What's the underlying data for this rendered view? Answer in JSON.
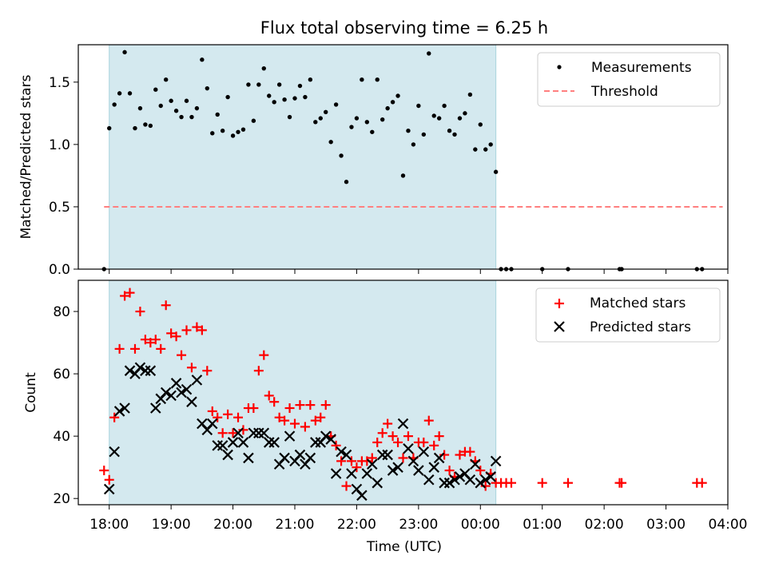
{
  "chart_data": [
    {
      "type": "scatter",
      "title": "Flux total observing time = 6.25 h",
      "xlabel": "",
      "ylabel": "Matched/Predicted stars",
      "xlim": [
        "17:30",
        "04:00"
      ],
      "ylim": [
        0,
        1.8
      ],
      "yticks": [
        "0.0",
        "0.5",
        "1.0",
        "1.5"
      ],
      "observing_window": [
        "18:00",
        "00:15"
      ],
      "observing_window_color": "#d4e9ef",
      "legend_position": "top-right",
      "legend": [
        "Measurements",
        "Threshold"
      ],
      "threshold": {
        "name": "Threshold",
        "value": 0.5,
        "x_range": [
          "17:55",
          "03:55"
        ],
        "color": "#ff7f7f"
      },
      "series": [
        {
          "name": "Measurements",
          "color": "#000000",
          "points": [
            [
              "17:55",
              0.0
            ],
            [
              "18:00",
              1.13
            ],
            [
              "18:05",
              1.32
            ],
            [
              "18:10",
              1.41
            ],
            [
              "18:15",
              1.74
            ],
            [
              "18:20",
              1.41
            ],
            [
              "18:25",
              1.13
            ],
            [
              "18:30",
              1.29
            ],
            [
              "18:35",
              1.16
            ],
            [
              "18:40",
              1.15
            ],
            [
              "18:45",
              1.44
            ],
            [
              "18:50",
              1.31
            ],
            [
              "18:55",
              1.52
            ],
            [
              "19:00",
              1.35
            ],
            [
              "19:05",
              1.27
            ],
            [
              "19:10",
              1.22
            ],
            [
              "19:15",
              1.35
            ],
            [
              "19:20",
              1.22
            ],
            [
              "19:25",
              1.29
            ],
            [
              "19:30",
              1.68
            ],
            [
              "19:35",
              1.45
            ],
            [
              "19:40",
              1.09
            ],
            [
              "19:45",
              1.24
            ],
            [
              "19:50",
              1.11
            ],
            [
              "19:55",
              1.38
            ],
            [
              "20:00",
              1.07
            ],
            [
              "20:05",
              1.1
            ],
            [
              "20:10",
              1.12
            ],
            [
              "20:15",
              1.48
            ],
            [
              "20:20",
              1.19
            ],
            [
              "20:25",
              1.48
            ],
            [
              "20:30",
              1.61
            ],
            [
              "20:35",
              1.39
            ],
            [
              "20:40",
              1.34
            ],
            [
              "20:45",
              1.48
            ],
            [
              "20:50",
              1.36
            ],
            [
              "20:55",
              1.22
            ],
            [
              "21:00",
              1.37
            ],
            [
              "21:05",
              1.47
            ],
            [
              "21:10",
              1.38
            ],
            [
              "21:15",
              1.52
            ],
            [
              "21:20",
              1.18
            ],
            [
              "21:25",
              1.21
            ],
            [
              "21:30",
              1.26
            ],
            [
              "21:35",
              1.02
            ],
            [
              "21:40",
              1.32
            ],
            [
              "21:45",
              0.91
            ],
            [
              "21:50",
              0.7
            ],
            [
              "21:55",
              1.14
            ],
            [
              "22:00",
              1.21
            ],
            [
              "22:05",
              1.52
            ],
            [
              "22:10",
              1.18
            ],
            [
              "22:15",
              1.1
            ],
            [
              "22:20",
              1.52
            ],
            [
              "22:25",
              1.2
            ],
            [
              "22:30",
              1.29
            ],
            [
              "22:35",
              1.34
            ],
            [
              "22:40",
              1.39
            ],
            [
              "22:45",
              0.75
            ],
            [
              "22:50",
              1.11
            ],
            [
              "22:55",
              1.0
            ],
            [
              "23:00",
              1.31
            ],
            [
              "23:05",
              1.08
            ],
            [
              "23:10",
              1.73
            ],
            [
              "23:15",
              1.23
            ],
            [
              "23:20",
              1.21
            ],
            [
              "23:25",
              1.31
            ],
            [
              "23:30",
              1.11
            ],
            [
              "23:35",
              1.08
            ],
            [
              "23:40",
              1.21
            ],
            [
              "23:45",
              1.25
            ],
            [
              "23:50",
              1.4
            ],
            [
              "23:55",
              0.96
            ],
            [
              "00:00",
              1.16
            ],
            [
              "00:05",
              0.96
            ],
            [
              "00:10",
              1.0
            ],
            [
              "00:15",
              0.78
            ],
            [
              "00:20",
              0.0
            ],
            [
              "00:25",
              0.0
            ],
            [
              "00:30",
              0.0
            ],
            [
              "01:00",
              0.0
            ],
            [
              "01:25",
              0.0
            ],
            [
              "02:15",
              0.0
            ],
            [
              "02:17",
              0.0
            ],
            [
              "03:30",
              0.0
            ],
            [
              "03:35",
              0.0
            ]
          ]
        }
      ]
    },
    {
      "type": "scatter",
      "title": "",
      "xlabel": "Time (UTC)",
      "ylabel": "Count",
      "xlim": [
        "17:30",
        "04:00"
      ],
      "ylim": [
        18,
        90
      ],
      "xticks": [
        "18:00",
        "19:00",
        "20:00",
        "21:00",
        "22:00",
        "23:00",
        "00:00",
        "01:00",
        "02:00",
        "03:00",
        "04:00"
      ],
      "yticks": [
        "20",
        "40",
        "60",
        "80"
      ],
      "observing_window": [
        "18:00",
        "00:15"
      ],
      "observing_window_color": "#d4e9ef",
      "legend_position": "top-right",
      "legend": [
        "Matched stars",
        "Predicted stars"
      ],
      "series": [
        {
          "name": "Matched stars",
          "color": "#ff0000",
          "marker": "plus",
          "points": [
            [
              "17:55",
              29
            ],
            [
              "18:00",
              26
            ],
            [
              "18:05",
              46
            ],
            [
              "18:10",
              68
            ],
            [
              "18:15",
              85
            ],
            [
              "18:20",
              86
            ],
            [
              "18:25",
              68
            ],
            [
              "18:30",
              80
            ],
            [
              "18:35",
              71
            ],
            [
              "18:40",
              70
            ],
            [
              "18:45",
              71
            ],
            [
              "18:50",
              68
            ],
            [
              "18:55",
              82
            ],
            [
              "19:00",
              73
            ],
            [
              "19:05",
              72
            ],
            [
              "19:10",
              66
            ],
            [
              "19:15",
              74
            ],
            [
              "19:20",
              62
            ],
            [
              "19:25",
              75
            ],
            [
              "19:30",
              74
            ],
            [
              "19:35",
              61
            ],
            [
              "19:40",
              48
            ],
            [
              "19:45",
              46
            ],
            [
              "19:50",
              41
            ],
            [
              "19:55",
              47
            ],
            [
              "20:00",
              41
            ],
            [
              "20:05",
              46
            ],
            [
              "20:10",
              42
            ],
            [
              "20:15",
              49
            ],
            [
              "20:20",
              49
            ],
            [
              "20:25",
              61
            ],
            [
              "20:30",
              66
            ],
            [
              "20:35",
              53
            ],
            [
              "20:40",
              51
            ],
            [
              "20:45",
              46
            ],
            [
              "20:50",
              45
            ],
            [
              "20:55",
              49
            ],
            [
              "21:00",
              44
            ],
            [
              "21:05",
              50
            ],
            [
              "21:10",
              43
            ],
            [
              "21:15",
              50
            ],
            [
              "21:20",
              45
            ],
            [
              "21:25",
              46
            ],
            [
              "21:30",
              50
            ],
            [
              "21:35",
              40
            ],
            [
              "21:40",
              37
            ],
            [
              "21:45",
              32
            ],
            [
              "21:50",
              24
            ],
            [
              "21:55",
              32
            ],
            [
              "22:00",
              30
            ],
            [
              "22:05",
              32
            ],
            [
              "22:10",
              32
            ],
            [
              "22:15",
              33
            ],
            [
              "22:20",
              38
            ],
            [
              "22:25",
              41
            ],
            [
              "22:30",
              44
            ],
            [
              "22:35",
              40
            ],
            [
              "22:40",
              38
            ],
            [
              "22:45",
              33
            ],
            [
              "22:50",
              40
            ],
            [
              "22:55",
              33
            ],
            [
              "23:00",
              38
            ],
            [
              "23:05",
              38
            ],
            [
              "23:10",
              45
            ],
            [
              "23:15",
              37
            ],
            [
              "23:20",
              40
            ],
            [
              "23:25",
              34
            ],
            [
              "23:30",
              29
            ],
            [
              "23:35",
              27
            ],
            [
              "23:40",
              34
            ],
            [
              "23:45",
              35
            ],
            [
              "23:50",
              35
            ],
            [
              "23:55",
              32
            ],
            [
              "00:00",
              29
            ],
            [
              "00:05",
              24
            ],
            [
              "00:10",
              28
            ],
            [
              "00:15",
              25
            ],
            [
              "00:20",
              25
            ],
            [
              "00:25",
              25
            ],
            [
              "00:30",
              25
            ],
            [
              "01:00",
              25
            ],
            [
              "01:25",
              25
            ],
            [
              "02:15",
              25
            ],
            [
              "02:17",
              25
            ],
            [
              "03:30",
              25
            ],
            [
              "03:35",
              25
            ]
          ]
        },
        {
          "name": "Predicted stars",
          "color": "#000000",
          "marker": "x",
          "points": [
            [
              "18:00",
              23
            ],
            [
              "18:05",
              35
            ],
            [
              "18:10",
              48
            ],
            [
              "18:15",
              49
            ],
            [
              "18:20",
              61
            ],
            [
              "18:25",
              60
            ],
            [
              "18:30",
              62
            ],
            [
              "18:35",
              61
            ],
            [
              "18:40",
              61
            ],
            [
              "18:45",
              49
            ],
            [
              "18:50",
              52
            ],
            [
              "18:55",
              54
            ],
            [
              "19:00",
              53
            ],
            [
              "19:05",
              57
            ],
            [
              "19:10",
              54
            ],
            [
              "19:15",
              55
            ],
            [
              "19:20",
              51
            ],
            [
              "19:25",
              58
            ],
            [
              "19:30",
              44
            ],
            [
              "19:35",
              42
            ],
            [
              "19:40",
              44
            ],
            [
              "19:45",
              37
            ],
            [
              "19:50",
              37
            ],
            [
              "19:55",
              34
            ],
            [
              "20:00",
              38
            ],
            [
              "20:05",
              41
            ],
            [
              "20:10",
              38
            ],
            [
              "20:15",
              33
            ],
            [
              "20:20",
              41
            ],
            [
              "20:25",
              41
            ],
            [
              "20:30",
              41
            ],
            [
              "20:35",
              38
            ],
            [
              "20:40",
              38
            ],
            [
              "20:45",
              31
            ],
            [
              "20:50",
              33
            ],
            [
              "20:55",
              40
            ],
            [
              "21:00",
              32
            ],
            [
              "21:05",
              34
            ],
            [
              "21:10",
              31
            ],
            [
              "21:15",
              33
            ],
            [
              "21:20",
              38
            ],
            [
              "21:25",
              38
            ],
            [
              "21:30",
              40
            ],
            [
              "21:35",
              39
            ],
            [
              "21:40",
              28
            ],
            [
              "21:45",
              35
            ],
            [
              "21:50",
              34
            ],
            [
              "21:55",
              28
            ],
            [
              "22:00",
              23
            ],
            [
              "22:05",
              21
            ],
            [
              "22:10",
              28
            ],
            [
              "22:15",
              31
            ],
            [
              "22:20",
              25
            ],
            [
              "22:25",
              34
            ],
            [
              "22:30",
              34
            ],
            [
              "22:35",
              29
            ],
            [
              "22:40",
              30
            ],
            [
              "22:45",
              44
            ],
            [
              "22:50",
              36
            ],
            [
              "22:55",
              32
            ],
            [
              "23:00",
              29
            ],
            [
              "23:05",
              35
            ],
            [
              "23:10",
              26
            ],
            [
              "23:15",
              30
            ],
            [
              "23:20",
              33
            ],
            [
              "23:25",
              25
            ],
            [
              "23:30",
              25
            ],
            [
              "23:35",
              26
            ],
            [
              "23:40",
              27
            ],
            [
              "23:45",
              28
            ],
            [
              "23:50",
              26
            ],
            [
              "23:55",
              31
            ],
            [
              "00:00",
              25
            ],
            [
              "00:05",
              26
            ],
            [
              "00:10",
              27
            ],
            [
              "00:15",
              32
            ]
          ]
        }
      ]
    }
  ]
}
